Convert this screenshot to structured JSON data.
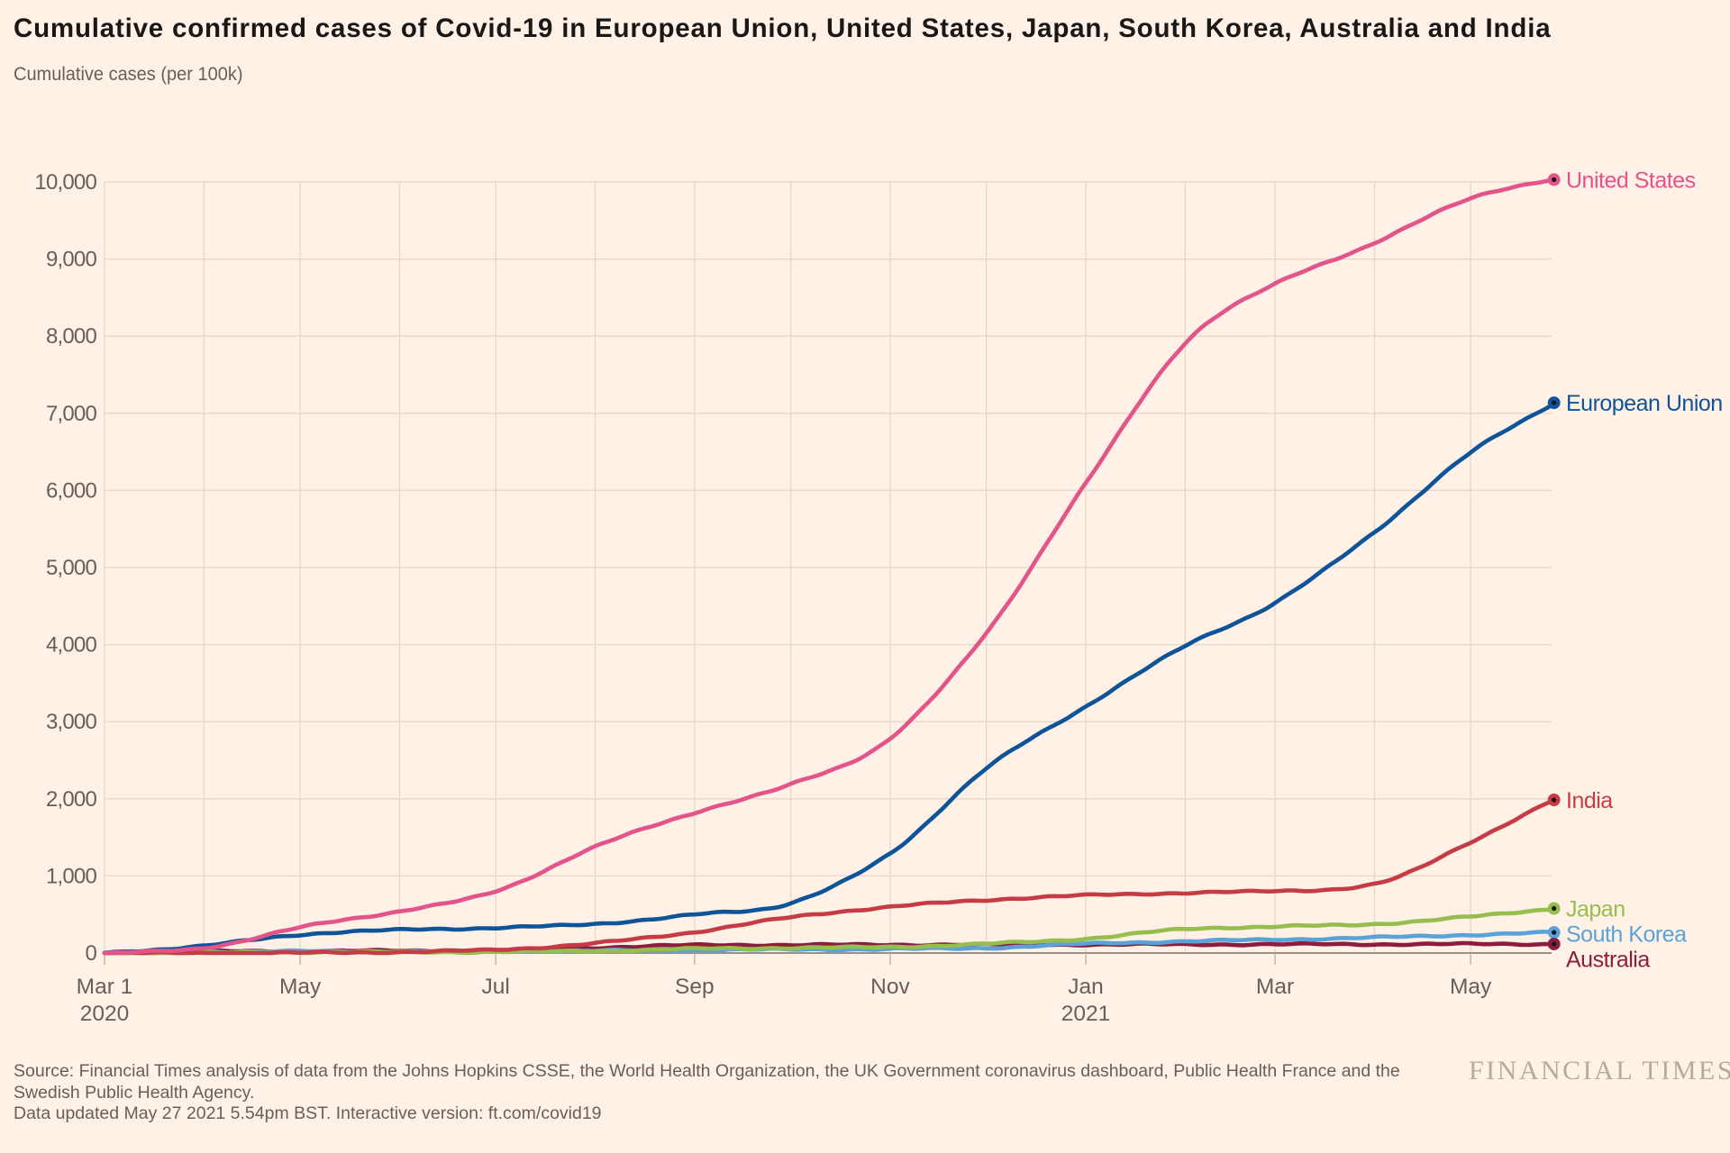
{
  "title": "Cumulative confirmed cases of Covid-19 in European Union, United States, Japan, South Korea, Australia and India",
  "subtitle": "Cumulative cases (per 100k)",
  "source_lines": [
    "Source: Financial Times analysis of data from the Johns Hopkins CSSE, the World Health Organization, the UK Government coronavirus dashboard, Public Health France and the",
    "Swedish Public Health Agency.",
    "Data updated May 27 2021 5.54pm BST. Interactive version: ft.com/covid19"
  ],
  "brand": "FINANCIAL TIMES",
  "colors": {
    "background": "#FFF1E5",
    "title_text": "#1A1817",
    "muted_text": "#66605C",
    "gridline": "#E4D7CB",
    "zero_axis": "#9A9087",
    "tick": "#B9AEA2",
    "dot_center": "#1A1817",
    "brand_text": "#B5AB9F"
  },
  "chart_data": {
    "type": "line",
    "title": "Cumulative confirmed cases of Covid-19 in European Union, United States, Japan, South Korea, Australia and India",
    "ylabel": "Cumulative cases (per 100k)",
    "xlabel": "",
    "ylim": [
      0,
      10000
    ],
    "yticks": [
      0,
      1000,
      2000,
      3000,
      4000,
      5000,
      6000,
      7000,
      8000,
      9000,
      10000
    ],
    "ytick_labels": [
      "0",
      "1,000",
      "2,000",
      "3,000",
      "4,000",
      "5,000",
      "6,000",
      "7,000",
      "8,000",
      "9,000",
      "10,000"
    ],
    "x_unit": "days since Mar 1 2020",
    "xlim": [
      0,
      452
    ],
    "xticks": [
      {
        "day": 0,
        "label": "Mar 1",
        "sublabel": "2020"
      },
      {
        "day": 61,
        "label": "May"
      },
      {
        "day": 122,
        "label": "Jul"
      },
      {
        "day": 184,
        "label": "Sep"
      },
      {
        "day": 245,
        "label": "Nov"
      },
      {
        "day": 306,
        "label": "Jan",
        "sublabel": "2021"
      },
      {
        "day": 365,
        "label": "Mar"
      },
      {
        "day": 426,
        "label": "May"
      }
    ],
    "month_grid_days": [
      0,
      31,
      61,
      92,
      122,
      153,
      184,
      214,
      245,
      275,
      306,
      337,
      365,
      396,
      426
    ],
    "anchor_days": [
      0,
      31,
      61,
      92,
      122,
      153,
      184,
      214,
      245,
      275,
      306,
      337,
      365,
      396,
      426,
      452
    ],
    "grid": true,
    "legend_position": "end-of-line labels at right",
    "series": [
      {
        "name": "United States",
        "color": "#E2548A",
        "values": [
          0,
          64,
          332,
          544,
          798,
          1378,
          1822,
          2185,
          2783,
          4154,
          6088,
          7912,
          8677,
          9202,
          9795,
          10030
        ]
      },
      {
        "name": "European Union",
        "color": "#0F5499",
        "values": [
          0,
          94,
          239,
          300,
          327,
          378,
          497,
          650,
          1290,
          2394,
          3199,
          3982,
          4541,
          5459,
          6488,
          7136
        ]
      },
      {
        "name": "India",
        "color": "#C63C44",
        "values": [
          0,
          0,
          3,
          14,
          42,
          127,
          273,
          463,
          599,
          688,
          748,
          780,
          804,
          891,
          1442,
          1986
        ]
      },
      {
        "name": "Japan",
        "color": "#96BE4E",
        "values": [
          0,
          2,
          12,
          13,
          15,
          28,
          54,
          67,
          79,
          119,
          187,
          310,
          343,
          376,
          471,
          578
        ]
      },
      {
        "name": "South Korea",
        "color": "#5AA2D8",
        "values": [
          7,
          19,
          21,
          22,
          25,
          28,
          39,
          46,
          52,
          66,
          120,
          152,
          174,
          201,
          236,
          267
        ]
      },
      {
        "name": "Australia",
        "color": "#8B1E3E",
        "values": [
          0,
          19,
          26,
          28,
          31,
          70,
          101,
          105,
          107,
          109,
          110,
          112,
          113,
          114,
          116,
          117
        ]
      }
    ]
  }
}
